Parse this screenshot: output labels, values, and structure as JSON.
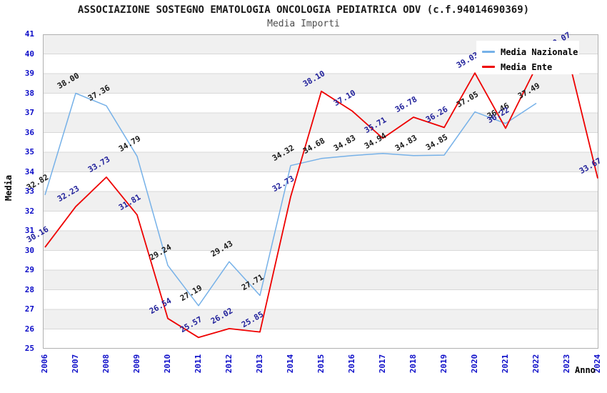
{
  "title": "ASSOCIAZIONE SOSTEGNO EMATOLOGIA ONCOLOGIA PEDIATRICA ODV (c.f.94014690369)",
  "subtitle": "Media Importi",
  "legend": {
    "items": [
      {
        "label": "Media Nazionale",
        "color": "#76b1e8"
      },
      {
        "label": "Media Ente",
        "color": "#ee0000"
      }
    ]
  },
  "colors": {
    "tick": "#0b0bc8",
    "grid": "#d8d8d8",
    "band": "#f0f0f0",
    "border": "#b0b0b0"
  },
  "chart_data": {
    "type": "line",
    "x": [
      2006,
      2007,
      2008,
      2009,
      2010,
      2011,
      2012,
      2013,
      2014,
      2015,
      2016,
      2017,
      2018,
      2019,
      2020,
      2021,
      2022,
      2023,
      2024
    ],
    "xlabel": "Anno",
    "ylabel": "Media",
    "ylim": [
      25,
      41
    ],
    "yticks": [
      25,
      26,
      27,
      28,
      29,
      30,
      31,
      32,
      33,
      34,
      35,
      36,
      37,
      38,
      39,
      40,
      41
    ],
    "grid": "horizontal",
    "band_fill": "alternating",
    "legend_position": "top-right-inside",
    "label_decimals": 2,
    "series": [
      {
        "name": "Media Nazionale",
        "color": "#76b1e8",
        "label_color": "#1a1a1a",
        "values": [
          32.82,
          38.0,
          37.36,
          34.79,
          29.24,
          27.19,
          29.43,
          27.71,
          34.32,
          34.68,
          34.83,
          34.94,
          34.83,
          34.85,
          37.05,
          36.46,
          37.49,
          null,
          null
        ]
      },
      {
        "name": "Media Ente",
        "color": "#ee0000",
        "label_color": "#22229b",
        "values": [
          30.16,
          32.23,
          33.73,
          31.81,
          26.54,
          25.57,
          26.02,
          25.85,
          32.73,
          38.1,
          37.1,
          35.71,
          36.78,
          36.26,
          39.03,
          36.22,
          39.35,
          40.07,
          33.67
        ]
      }
    ]
  }
}
